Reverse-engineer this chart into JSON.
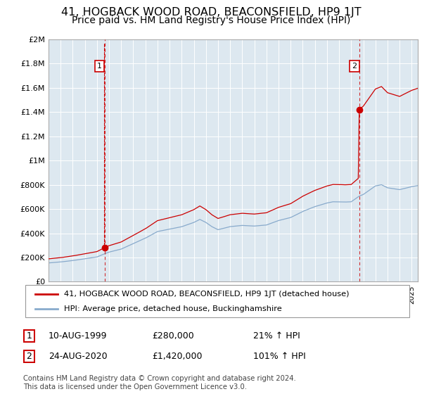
{
  "title": "41, HOGBACK WOOD ROAD, BEACONSFIELD, HP9 1JT",
  "subtitle": "Price paid vs. HM Land Registry's House Price Index (HPI)",
  "title_fontsize": 11.5,
  "subtitle_fontsize": 10,
  "legend_line1": "41, HOGBACK WOOD ROAD, BEACONSFIELD, HP9 1JT (detached house)",
  "legend_line2": "HPI: Average price, detached house, Buckinghamshire",
  "sale1_date": "10-AUG-1999",
  "sale1_price": "£280,000",
  "sale1_hpi": "21% ↑ HPI",
  "sale2_date": "24-AUG-2020",
  "sale2_price": "£1,420,000",
  "sale2_hpi": "101% ↑ HPI",
  "footnote": "Contains HM Land Registry data © Crown copyright and database right 2024.\nThis data is licensed under the Open Government Licence v3.0.",
  "red_color": "#cc0000",
  "blue_color": "#88aacc",
  "chart_bg": "#dde8f0",
  "background_color": "#ffffff",
  "grid_color": "#ffffff",
  "ylim_min": 0,
  "ylim_max": 2000000,
  "sale1_year": 1999.62,
  "sale1_value": 280000,
  "sale2_year": 2020.65,
  "sale2_value": 1420000,
  "xmin": 1995.0,
  "xmax": 2025.5
}
